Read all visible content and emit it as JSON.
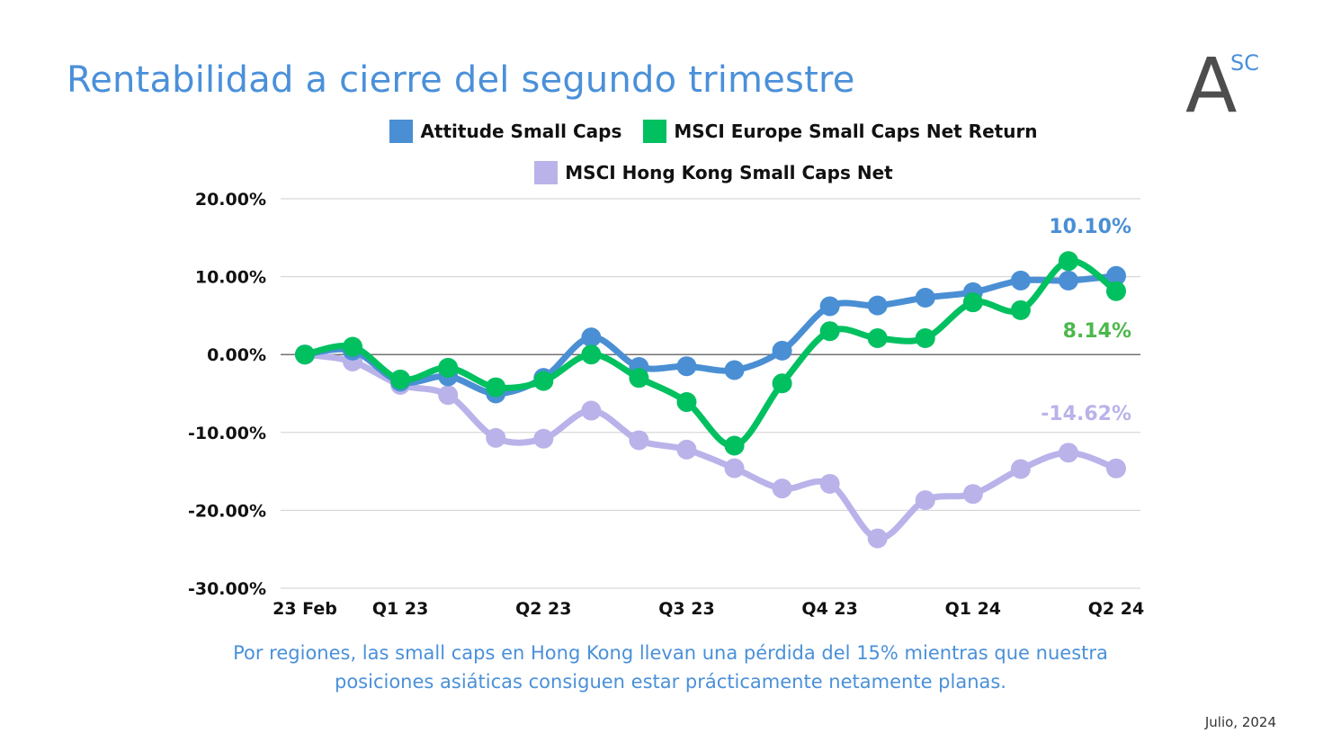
{
  "title": "Rentabilidad a cierre del segundo trimestre",
  "logo": {
    "letter": "A",
    "superscript": "SC"
  },
  "caption_lines": [
    "Por regiones, las small caps en Hong Kong llevan una pérdida del 15% mientras que nuestra",
    "posiciones asiáticas consiguen estar prácticamente netamente planas."
  ],
  "date": "Julio, 2024",
  "colors": {
    "title": "#4a90d9",
    "attitude": "#4a8fd4",
    "msci_europe": "#00c060",
    "msci_hk": "#b9b3ea"
  },
  "chart_data": {
    "type": "line",
    "x": [
      "23 Feb",
      "",
      "Q1 23",
      "",
      "",
      "Q2 23",
      "",
      "",
      "Q3 23",
      "",
      "",
      "Q4 23",
      "",
      "",
      "Q1 24",
      "",
      "",
      "Q2 24"
    ],
    "x_ticks": [
      "23 Feb",
      "Q1 23",
      "Q2 23",
      "Q3 23",
      "Q4 23",
      "Q1 24",
      "Q2 24"
    ],
    "y_ticks": [
      "20.00%",
      "10.00%",
      "0.00%",
      "-10.00%",
      "-20.00%",
      "-30.00%"
    ],
    "ylim": [
      -30,
      20
    ],
    "grid": true,
    "legend_position": "top",
    "series": [
      {
        "name": "Attitude Small Caps",
        "color": "#4a8fd4",
        "values": [
          0,
          0.5,
          -3.5,
          -2.8,
          -5.0,
          -3.0,
          2.2,
          -1.6,
          -1.5,
          -2.0,
          0.5,
          6.2,
          6.3,
          7.3,
          8.0,
          9.5,
          9.5,
          10.1
        ],
        "end_label": "10.10%"
      },
      {
        "name": "MSCI Europe Small Caps Net Return",
        "color": "#00c060",
        "values": [
          0,
          1.0,
          -3.2,
          -1.7,
          -4.2,
          -3.4,
          0,
          -3.0,
          -6.1,
          -11.7,
          -3.7,
          3.0,
          2.1,
          2.1,
          6.7,
          5.7,
          12.0,
          8.14
        ],
        "end_label": "8.14%"
      },
      {
        "name": "MSCI Hong Kong Small Caps Net",
        "color": "#b9b3ea",
        "values": [
          0,
          -0.9,
          -3.9,
          -5.2,
          -10.7,
          -10.8,
          -7.2,
          -11.0,
          -12.2,
          -14.6,
          -17.2,
          -16.6,
          -23.6,
          -18.7,
          -17.9,
          -14.7,
          -12.6,
          -14.62
        ],
        "end_label": "-14.62%"
      }
    ]
  }
}
